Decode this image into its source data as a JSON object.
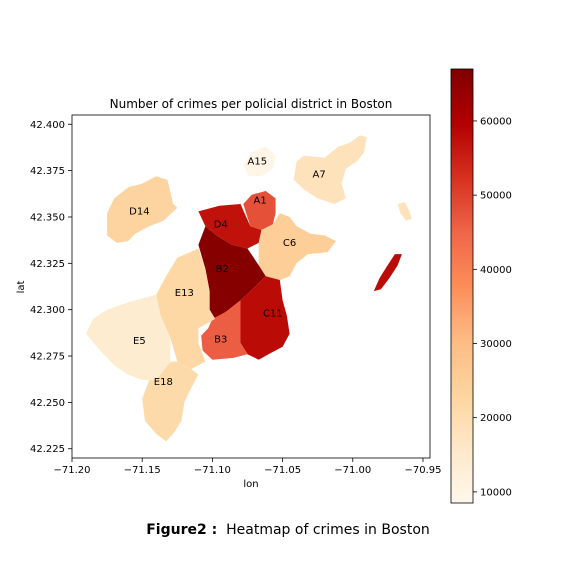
{
  "chart_data": {
    "type": "choropleth",
    "title": "Number of crimes per policial district in Boston",
    "xlabel": "lon",
    "ylabel": "lat",
    "xlim": [
      -71.2,
      -70.945
    ],
    "ylim": [
      42.22,
      42.405
    ],
    "xticks": [
      -71.2,
      -71.15,
      -71.1,
      -71.05,
      -71.0,
      -70.95
    ],
    "xtick_labels": [
      "−71.20",
      "−71.15",
      "−71.10",
      "−71.05",
      "−71.00",
      "−70.95"
    ],
    "yticks": [
      42.225,
      42.25,
      42.275,
      42.3,
      42.325,
      42.35,
      42.375,
      42.4
    ],
    "ytick_labels": [
      "42.225",
      "42.250",
      "42.275",
      "42.300",
      "42.325",
      "42.350",
      "42.375",
      "42.400"
    ],
    "colormap": "OrRd",
    "color_range": [
      8500,
      67000
    ],
    "colorbar_ticks": [
      10000,
      20000,
      30000,
      40000,
      50000,
      60000
    ],
    "colorbar_tick_labels": [
      "10000",
      "20000",
      "30000",
      "40000",
      "50000",
      "60000"
    ],
    "districts": [
      {
        "name": "A15",
        "value": 9500,
        "polygon": [
          [
            -71.078,
            42.378
          ],
          [
            -71.072,
            42.385
          ],
          [
            -71.062,
            42.388
          ],
          [
            -71.055,
            42.383
          ],
          [
            -71.057,
            42.376
          ],
          [
            -71.065,
            42.372
          ],
          [
            -71.074,
            42.372
          ]
        ]
      },
      {
        "name": "A7",
        "value": 18000,
        "polygon": [
          [
            -71.04,
            42.38
          ],
          [
            -71.035,
            42.383
          ],
          [
            -71.02,
            42.382
          ],
          [
            -71.01,
            42.388
          ],
          [
            -71.002,
            42.39
          ],
          [
            -70.995,
            42.394
          ],
          [
            -70.99,
            42.393
          ],
          [
            -70.992,
            42.385
          ],
          [
            -70.997,
            42.38
          ],
          [
            -71.005,
            42.376
          ],
          [
            -71.008,
            42.368
          ],
          [
            -71.005,
            42.36
          ],
          [
            -71.013,
            42.357
          ],
          [
            -71.025,
            42.36
          ],
          [
            -71.035,
            42.365
          ],
          [
            -71.042,
            42.37
          ]
        ]
      },
      {
        "name": "A7-island",
        "value": 18000,
        "polygon": [
          [
            -70.968,
            42.357
          ],
          [
            -70.963,
            42.358
          ],
          [
            -70.96,
            42.354
          ],
          [
            -70.958,
            42.349
          ],
          [
            -70.962,
            42.348
          ],
          [
            -70.966,
            42.352
          ]
        ]
      },
      {
        "name": "A1",
        "value": 48000,
        "polygon": [
          [
            -71.078,
            42.357
          ],
          [
            -71.072,
            42.362
          ],
          [
            -71.062,
            42.364
          ],
          [
            -71.055,
            42.36
          ],
          [
            -71.055,
            42.352
          ],
          [
            -71.057,
            42.346
          ],
          [
            -71.065,
            42.343
          ],
          [
            -71.073,
            42.345
          ]
        ]
      },
      {
        "name": "D4",
        "value": 57000,
        "polygon": [
          [
            -71.11,
            42.353
          ],
          [
            -71.095,
            42.356
          ],
          [
            -71.08,
            42.357
          ],
          [
            -71.073,
            42.345
          ],
          [
            -71.065,
            42.343
          ],
          [
            -71.067,
            42.336
          ],
          [
            -71.075,
            42.333
          ],
          [
            -71.086,
            42.335
          ],
          [
            -71.097,
            42.34
          ],
          [
            -71.105,
            42.345
          ]
        ]
      },
      {
        "name": "C6",
        "value": 25000,
        "polygon": [
          [
            -71.065,
            42.343
          ],
          [
            -71.057,
            42.346
          ],
          [
            -71.052,
            42.352
          ],
          [
            -71.045,
            42.35
          ],
          [
            -71.04,
            42.345
          ],
          [
            -71.03,
            42.341
          ],
          [
            -71.02,
            42.34
          ],
          [
            -71.012,
            42.337
          ],
          [
            -71.018,
            42.331
          ],
          [
            -71.032,
            42.33
          ],
          [
            -71.04,
            42.325
          ],
          [
            -71.045,
            42.318
          ],
          [
            -71.052,
            42.316
          ],
          [
            -71.062,
            42.318
          ],
          [
            -71.067,
            42.324
          ],
          [
            -71.067,
            42.336
          ]
        ]
      },
      {
        "name": "B2",
        "value": 66000,
        "polygon": [
          [
            -71.105,
            42.345
          ],
          [
            -71.097,
            42.34
          ],
          [
            -71.086,
            42.335
          ],
          [
            -71.075,
            42.333
          ],
          [
            -71.067,
            42.324
          ],
          [
            -71.062,
            42.318
          ],
          [
            -71.07,
            42.312
          ],
          [
            -71.08,
            42.305
          ],
          [
            -71.09,
            42.299
          ],
          [
            -71.098,
            42.295
          ],
          [
            -71.102,
            42.3
          ],
          [
            -71.102,
            42.31
          ],
          [
            -71.105,
            42.322
          ],
          [
            -71.11,
            42.335
          ]
        ]
      },
      {
        "name": "C11",
        "value": 58000,
        "polygon": [
          [
            -71.08,
            42.305
          ],
          [
            -71.07,
            42.312
          ],
          [
            -71.062,
            42.318
          ],
          [
            -71.052,
            42.316
          ],
          [
            -71.05,
            42.305
          ],
          [
            -71.047,
            42.297
          ],
          [
            -71.045,
            42.287
          ],
          [
            -71.05,
            42.28
          ],
          [
            -71.06,
            42.276
          ],
          [
            -71.067,
            42.273
          ],
          [
            -71.075,
            42.276
          ],
          [
            -71.08,
            42.282
          ],
          [
            -71.08,
            42.292
          ]
        ]
      },
      {
        "name": "B3",
        "value": 46000,
        "polygon": [
          [
            -71.1,
            42.295
          ],
          [
            -71.09,
            42.299
          ],
          [
            -71.08,
            42.305
          ],
          [
            -71.08,
            42.292
          ],
          [
            -71.08,
            42.282
          ],
          [
            -71.075,
            42.276
          ],
          [
            -71.085,
            42.274
          ],
          [
            -71.1,
            42.273
          ],
          [
            -71.107,
            42.278
          ],
          [
            -71.108,
            42.286
          ],
          [
            -71.103,
            42.29
          ]
        ]
      },
      {
        "name": "D14",
        "value": 23000,
        "polygon": [
          [
            -71.175,
            42.352
          ],
          [
            -71.17,
            42.36
          ],
          [
            -71.16,
            42.366
          ],
          [
            -71.15,
            42.368
          ],
          [
            -71.14,
            42.372
          ],
          [
            -71.132,
            42.37
          ],
          [
            -71.128,
            42.357
          ],
          [
            -71.125,
            42.355
          ],
          [
            -71.135,
            42.348
          ],
          [
            -71.145,
            42.345
          ],
          [
            -71.155,
            42.341
          ],
          [
            -71.16,
            42.337
          ],
          [
            -71.168,
            42.336
          ],
          [
            -71.175,
            42.34
          ]
        ]
      },
      {
        "name": "E13",
        "value": 22000,
        "polygon": [
          [
            -71.125,
            42.328
          ],
          [
            -71.11,
            42.333
          ],
          [
            -71.105,
            42.322
          ],
          [
            -71.102,
            42.31
          ],
          [
            -71.102,
            42.3
          ],
          [
            -71.098,
            42.295
          ],
          [
            -71.11,
            42.29
          ],
          [
            -71.11,
            42.282
          ],
          [
            -71.105,
            42.272
          ],
          [
            -71.115,
            42.268
          ],
          [
            -71.125,
            42.272
          ],
          [
            -71.13,
            42.285
          ],
          [
            -71.137,
            42.297
          ],
          [
            -71.14,
            42.308
          ],
          [
            -71.133,
            42.318
          ]
        ]
      },
      {
        "name": "E5",
        "value": 14000,
        "polygon": [
          [
            -71.14,
            42.308
          ],
          [
            -71.16,
            42.304
          ],
          [
            -71.175,
            42.3
          ],
          [
            -71.185,
            42.295
          ],
          [
            -71.19,
            42.287
          ],
          [
            -71.18,
            42.278
          ],
          [
            -71.17,
            42.27
          ],
          [
            -71.16,
            42.265
          ],
          [
            -71.15,
            42.262
          ],
          [
            -71.14,
            42.262
          ],
          [
            -71.13,
            42.272
          ],
          [
            -71.13,
            42.285
          ],
          [
            -71.137,
            42.297
          ]
        ]
      },
      {
        "name": "E18",
        "value": 21000,
        "polygon": [
          [
            -71.13,
            42.272
          ],
          [
            -71.125,
            42.272
          ],
          [
            -71.115,
            42.268
          ],
          [
            -71.11,
            42.265
          ],
          [
            -71.115,
            42.258
          ],
          [
            -71.12,
            42.25
          ],
          [
            -71.122,
            42.24
          ],
          [
            -71.128,
            42.233
          ],
          [
            -71.133,
            42.229
          ],
          [
            -71.14,
            42.233
          ],
          [
            -71.148,
            42.24
          ],
          [
            -71.15,
            42.252
          ],
          [
            -71.145,
            42.262
          ],
          [
            -71.14,
            42.262
          ]
        ]
      },
      {
        "name": "C11-island",
        "value": 58000,
        "polygon": [
          [
            -70.97,
            42.33
          ],
          [
            -70.965,
            42.33
          ],
          [
            -70.968,
            42.324
          ],
          [
            -70.974,
            42.317
          ],
          [
            -70.98,
            42.311
          ],
          [
            -70.985,
            42.31
          ],
          [
            -70.981,
            42.317
          ],
          [
            -70.976,
            42.323
          ]
        ]
      }
    ],
    "labels": [
      {
        "text": "A15",
        "lon": -71.068,
        "lat": 42.38
      },
      {
        "text": "A7",
        "lon": -71.024,
        "lat": 42.373
      },
      {
        "text": "A1",
        "lon": -71.066,
        "lat": 42.359
      },
      {
        "text": "D14",
        "lon": -71.152,
        "lat": 42.353
      },
      {
        "text": "D4",
        "lon": -71.094,
        "lat": 42.346
      },
      {
        "text": "C6",
        "lon": -71.045,
        "lat": 42.336
      },
      {
        "text": "B2",
        "lon": -71.093,
        "lat": 42.322
      },
      {
        "text": "E13",
        "lon": -71.12,
        "lat": 42.309
      },
      {
        "text": "C11",
        "lon": -71.057,
        "lat": 42.298
      },
      {
        "text": "B3",
        "lon": -71.094,
        "lat": 42.284
      },
      {
        "text": "E5",
        "lon": -71.152,
        "lat": 42.283
      },
      {
        "text": "E18",
        "lon": -71.135,
        "lat": 42.261
      }
    ]
  },
  "caption": {
    "prefix": "Figure2 :",
    "text": "Heatmap of crimes in Boston"
  }
}
